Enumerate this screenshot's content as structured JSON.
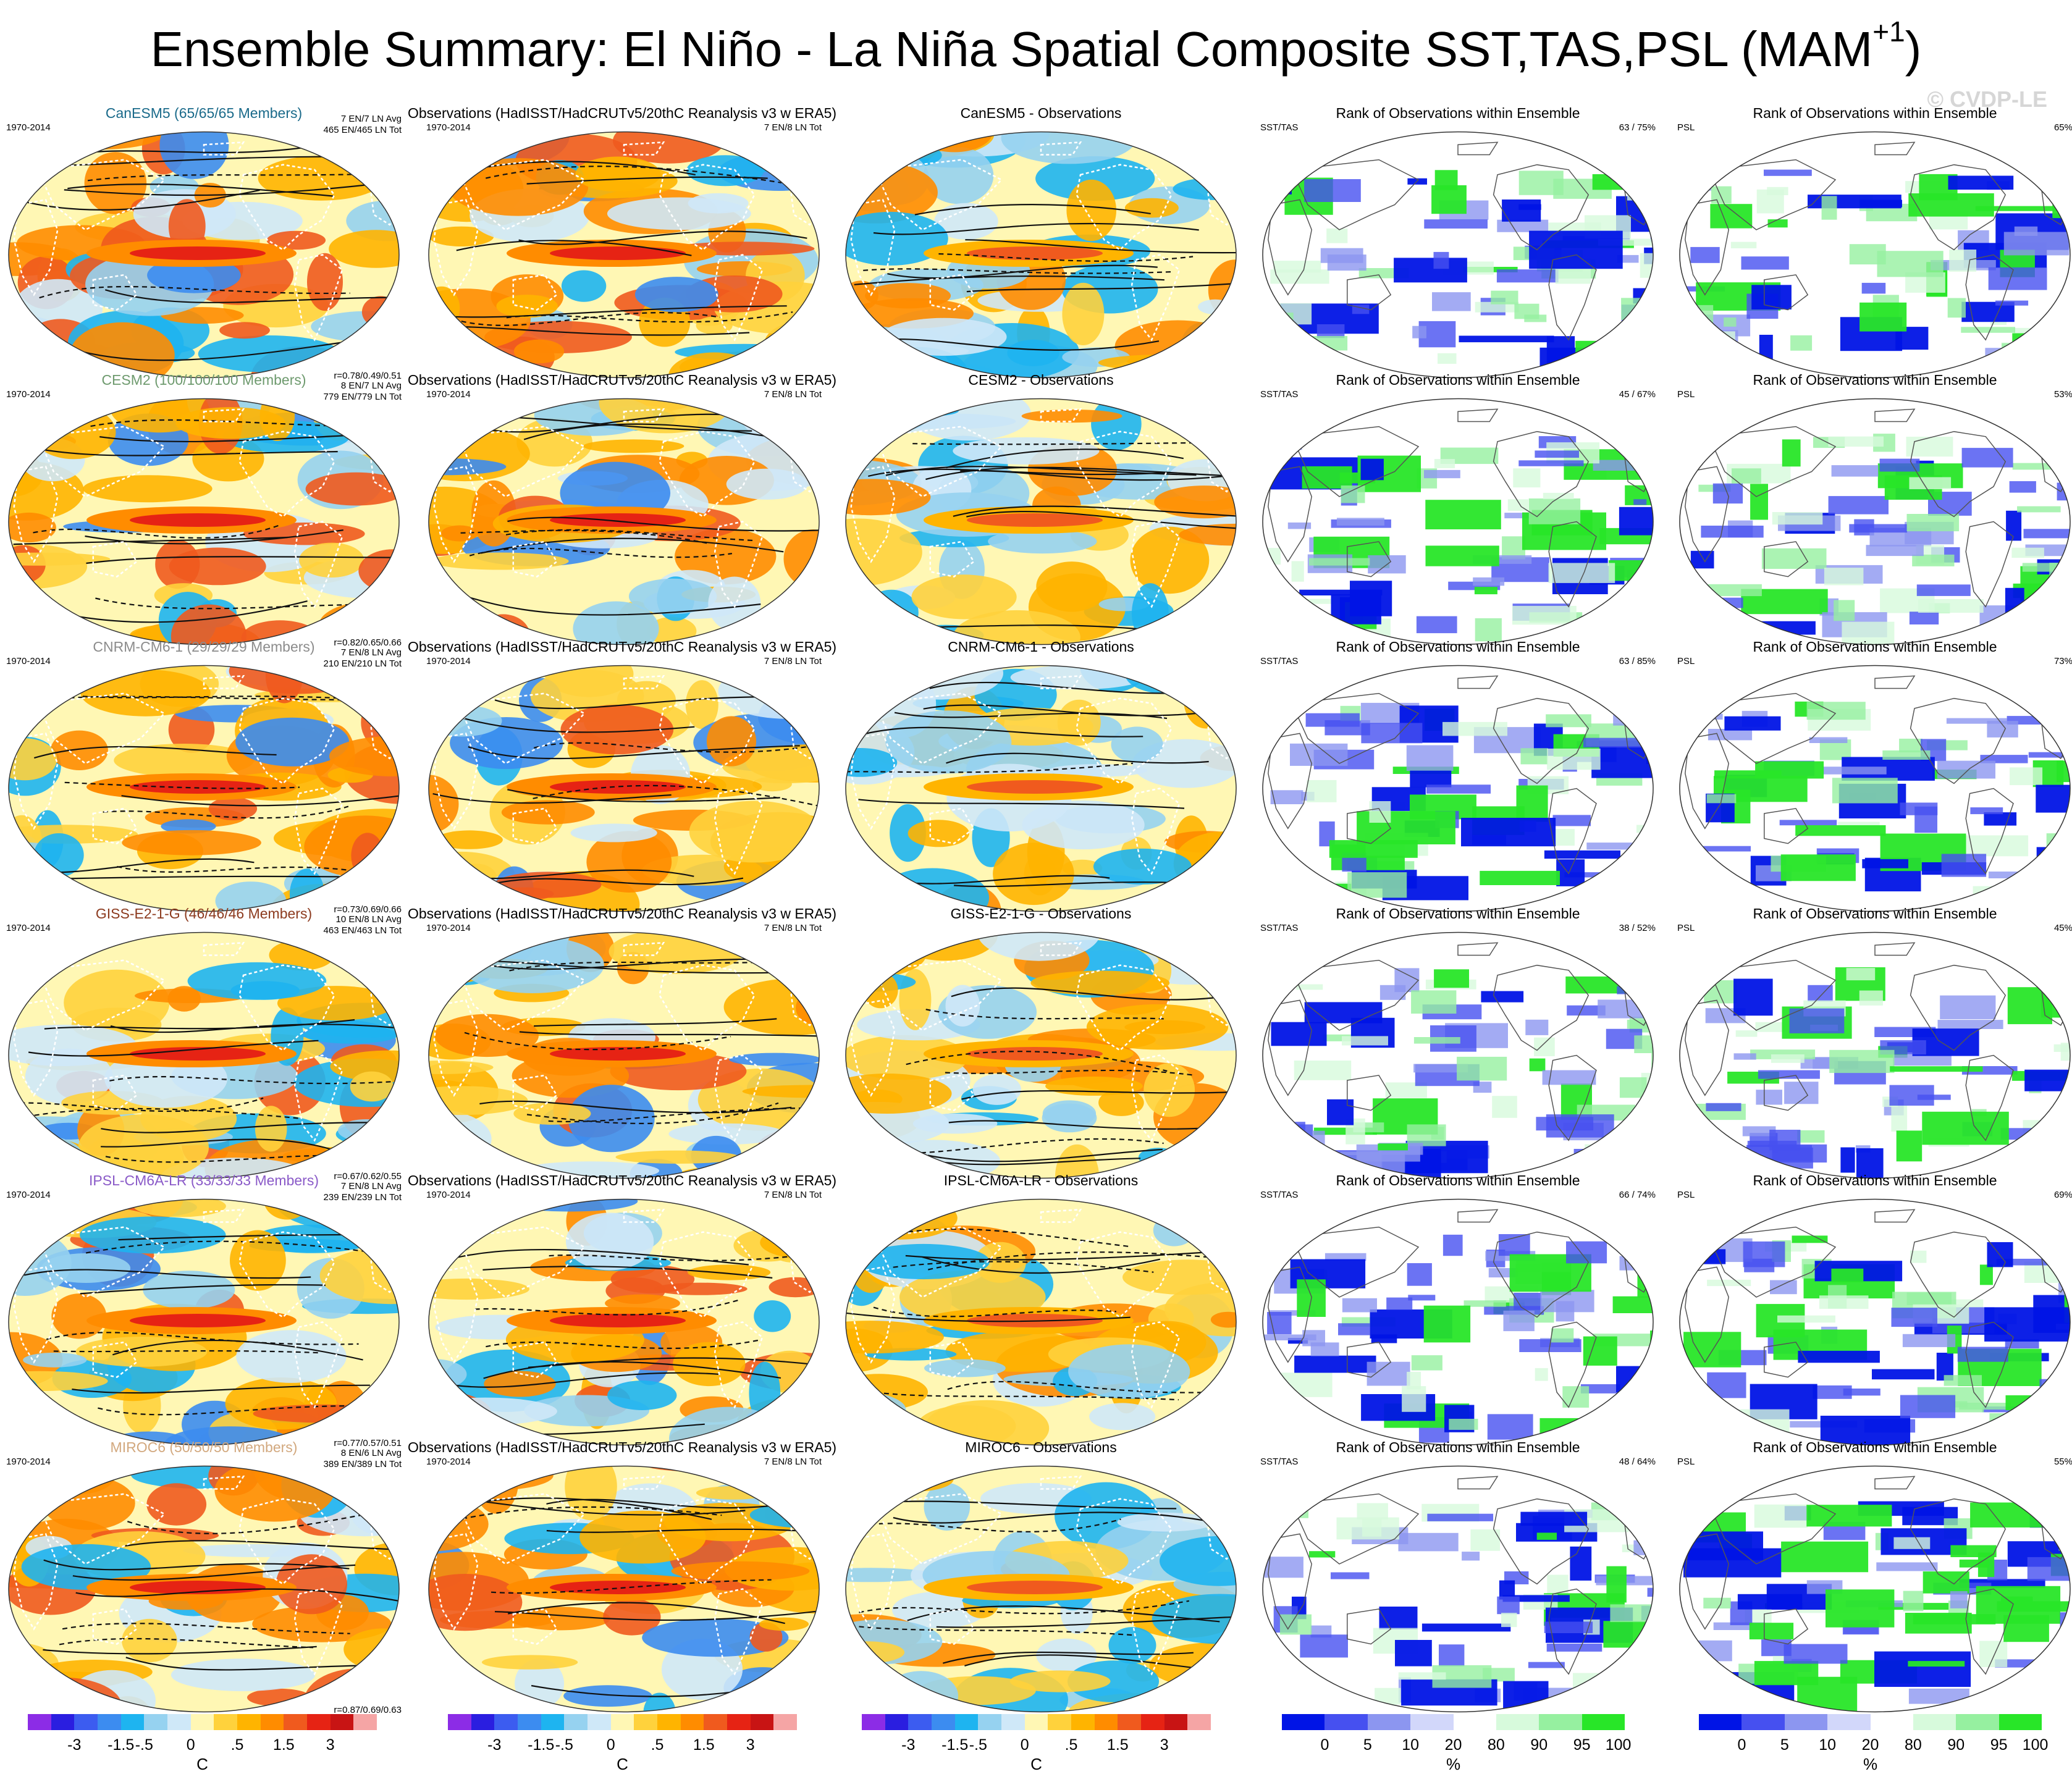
{
  "figure": {
    "title": "Ensemble Summary: El Niño - La Niña Spatial Composite SST,TAS,PSL (MAM",
    "title_sup": "+1",
    "title_close": ")",
    "watermark": "© CVDP-LE"
  },
  "chart_data": {
    "type": "heatmap",
    "description_type": "map-panel-grid",
    "obs_title": "Observations (HadISST/HadCRUTv5/20thC Reanalysis v3 w ERA5)",
    "period": "1970-2014",
    "rank_title": "Rank of Observations within Ensemble",
    "rank_label_sst": "SST/TAS",
    "rank_label_psl": "PSL",
    "rows": [
      {
        "model": "CanESM5",
        "members": "CanESM5 (65/65/65 Members)",
        "color": "#1a6a8a",
        "avg": "7 EN/7 LN Avg",
        "tot": "465 EN/465 LN Tot",
        "obs_count": "7 EN/8 LN Tot",
        "corr": "r=0.78/0.49/0.51",
        "diff_title": "CanESM5 - Observations",
        "rank_sst": "63 /  75%",
        "rank_psl": "65%"
      },
      {
        "model": "CESM2",
        "members": "CESM2 (100/100/100 Members)",
        "color": "#6e9a6e",
        "avg": "8 EN/7 LN Avg",
        "tot": "779 EN/779 LN Tot",
        "obs_count": "7 EN/8 LN Tot",
        "corr": "r=0.82/0.65/0.66",
        "diff_title": "CESM2 - Observations",
        "rank_sst": "45 /  67%",
        "rank_psl": "53%"
      },
      {
        "model": "CNRM-CM6-1",
        "members": "CNRM-CM6-1 (29/29/29 Members)",
        "color": "#8c8c8c",
        "avg": "7 EN/8 LN Avg",
        "tot": "210 EN/210 LN Tot",
        "obs_count": "7 EN/8 LN Tot",
        "corr": "r=0.73/0.69/0.66",
        "diff_title": "CNRM-CM6-1 - Observations",
        "rank_sst": "63 /  85%",
        "rank_psl": "73%"
      },
      {
        "model": "GISS-E2-1-G",
        "members": "GISS-E2-1-G (46/46/46 Members)",
        "color": "#8c3a1e",
        "avg": "10 EN/8 LN Avg",
        "tot": "463 EN/463 LN Tot",
        "obs_count": "7 EN/8 LN Tot",
        "corr": "r=0.67/0.62/0.55",
        "diff_title": "GISS-E2-1-G - Observations",
        "rank_sst": "38 /  52%",
        "rank_psl": "45%"
      },
      {
        "model": "IPSL-CM6A-LR",
        "members": "IPSL-CM6A-LR (33/33/33 Members)",
        "color": "#8a5ac8",
        "avg": "7 EN/8 LN Avg",
        "tot": "239 EN/239 LN Tot",
        "obs_count": "7 EN/8 LN Tot",
        "corr": "r=0.77/0.57/0.51",
        "diff_title": "IPSL-CM6A-LR - Observations",
        "rank_sst": "66 /  74%",
        "rank_psl": "69%"
      },
      {
        "model": "MIROC6",
        "members": "MIROC6 (50/50/50 Members)",
        "color": "#d2a87e",
        "avg": "8 EN/6 LN Avg",
        "tot": "389 EN/389 LN Tot",
        "obs_count": "7 EN/8 LN Tot",
        "corr": "r=0.87/0.69/0.63",
        "diff_title": "MIROC6 - Observations",
        "rank_sst": "48 /  64%",
        "rank_psl": "55%"
      }
    ],
    "temp_colorbar": {
      "colors": [
        "#8c2ce6",
        "#2a1ee0",
        "#3c5cf0",
        "#3c8cf0",
        "#1eb4f0",
        "#96d2f0",
        "#cfe8f8",
        "#fff7b4",
        "#ffd23c",
        "#ffb400",
        "#ff8c00",
        "#f05a1e",
        "#e62314",
        "#c81414",
        "#f5a5a5"
      ],
      "ticks": [
        "-3",
        "-1.5",
        "-.5",
        "0",
        ".5",
        "1.5",
        "3"
      ],
      "unit": "C"
    },
    "rank_colorbar": {
      "colors": [
        "#0014e6",
        "#4650f0",
        "#8c96f0",
        "#d2d7fa",
        "#ffffff",
        "#d7fadc",
        "#96f0a0",
        "#28e628"
      ],
      "ticks": [
        "0",
        "5",
        "10",
        "20",
        "80",
        "90",
        "95",
        "100"
      ],
      "unit": "%"
    },
    "colors": {
      "land_outline": "#333333",
      "contour": "#111111",
      "obs_land_dash": "#ffffff"
    }
  }
}
